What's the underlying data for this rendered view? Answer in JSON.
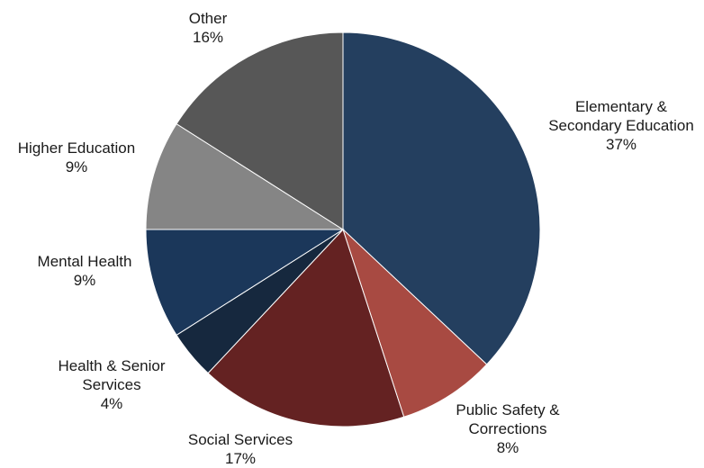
{
  "chart_data": {
    "type": "pie",
    "title": "",
    "start_angle_deg": 0,
    "direction": "clockwise",
    "slices": [
      {
        "label_lines": [
          "Elementary &",
          "Secondary Education"
        ],
        "value": 37,
        "value_label": "37%",
        "color": "#243F5F"
      },
      {
        "label_lines": [
          "Public Safety &",
          "Corrections"
        ],
        "value": 8,
        "value_label": "8%",
        "color": "#A84A42"
      },
      {
        "label_lines": [
          "Social Services"
        ],
        "value": 17,
        "value_label": "17%",
        "color": "#642222"
      },
      {
        "label_lines": [
          "Health & Senior",
          "Services"
        ],
        "value": 4,
        "value_label": "4%",
        "color": "#16283E"
      },
      {
        "label_lines": [
          "Mental Health"
        ],
        "value": 9,
        "value_label": "9%",
        "color": "#1B375A"
      },
      {
        "label_lines": [
          "Higher Education"
        ],
        "value": 9,
        "value_label": "9%",
        "color": "#858585"
      },
      {
        "label_lines": [
          "Other"
        ],
        "value": 16,
        "value_label": "16%",
        "color": "#575757"
      }
    ]
  }
}
